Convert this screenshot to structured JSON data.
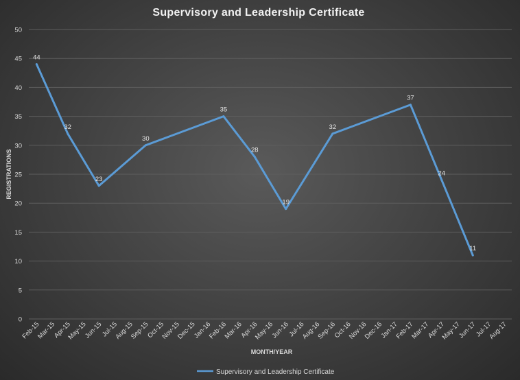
{
  "chart_data": {
    "type": "line",
    "title": "Supervisory and Leadership Certificate",
    "xlabel": "MONTH/YEAR",
    "ylabel": "REGISTRATIONS",
    "ylim": [
      0,
      50
    ],
    "yticks": [
      0,
      5,
      10,
      15,
      20,
      25,
      30,
      35,
      40,
      45,
      50
    ],
    "grid": true,
    "legend_position": "bottom",
    "categories": [
      "Feb-15",
      "Mar-15",
      "Apr-15",
      "May-15",
      "Jun-15",
      "Jul-15",
      "Aug-15",
      "Sep-15",
      "Oct-15",
      "Nov-15",
      "Dec-15",
      "Jan-16",
      "Feb-16",
      "Mar-16",
      "Apr-16",
      "May-16",
      "Jun-16",
      "Jul-16",
      "Aug-16",
      "Sep-16",
      "Oct-16",
      "Nov-16",
      "Dec-16",
      "Jan-17",
      "Feb-17",
      "Mar-17",
      "Apr-17",
      "May-17",
      "Jun-17",
      "Jul-17",
      "Aug-17"
    ],
    "series": [
      {
        "name": "Supervisory and Leadership Certificate",
        "color": "#5b9bd5",
        "points": [
          {
            "x": "Feb-15",
            "y": 44
          },
          {
            "x": "Apr-15",
            "y": 32
          },
          {
            "x": "Jun-15",
            "y": 23
          },
          {
            "x": "Sep-15",
            "y": 30
          },
          {
            "x": "Feb-16",
            "y": 35
          },
          {
            "x": "Apr-16",
            "y": 28
          },
          {
            "x": "Jun-16",
            "y": 19
          },
          {
            "x": "Sep-16",
            "y": 32
          },
          {
            "x": "Feb-17",
            "y": 37
          },
          {
            "x": "Apr-17",
            "y": 24
          },
          {
            "x": "Jun-17",
            "y": 11
          }
        ]
      }
    ]
  }
}
